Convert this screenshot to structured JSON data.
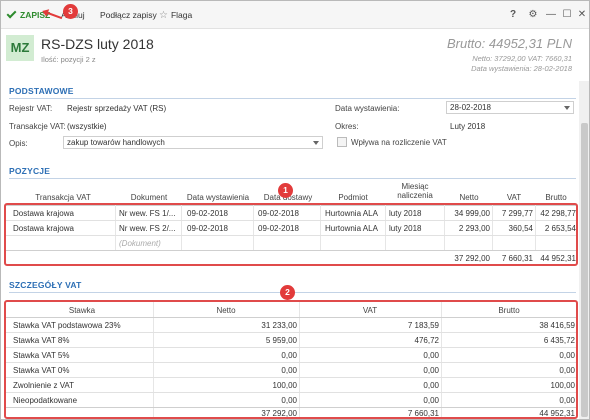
{
  "toolbar": {
    "save": "ZAPISZ",
    "cancel": "Anuluj",
    "attach": "Podłącz zapisy",
    "flag": "Flaga",
    "help": "?",
    "settings": "⚙",
    "minimize": "—",
    "maximize": "☐",
    "close": "✕"
  },
  "callouts": {
    "c1": "1",
    "c2": "2",
    "c3": "3"
  },
  "header": {
    "badge": "MZ",
    "title": "RS-DZS luty 2018",
    "subtitle": "Ilość: pozycji 2 z",
    "brutto": "Brutto: 44952,31 PLN",
    "netto_vat": "Netto: 37292,00 VAT: 7660,31",
    "issue_date": "Data wystawienia: 28-02-2018"
  },
  "podstawowe": {
    "title": "PODSTAWOWE",
    "register_label": "Rejestr VAT:",
    "register_value": "Rejestr sprzedaży VAT (RS)",
    "transaction_label": "Transakcje VAT:",
    "transaction_value": "(wszystkie)",
    "description_label": "Opis:",
    "description_value": "zakup towarów handlowych",
    "issue_date_label": "Data wystawienia:",
    "issue_date_value": "28-02-2018",
    "period_label": "Okres:",
    "period_value": "Luty 2018",
    "settlement_label": "Wpływa na rozliczenie VAT"
  },
  "pozycje": {
    "title": "POZYCJE",
    "columns": [
      "Transakcja VAT",
      "Dokument",
      "Data wystawienia",
      "Data dostawy",
      "Podmiot",
      "Miesiąc naliczenia",
      "Netto",
      "VAT",
      "Brutto"
    ],
    "rows": [
      [
        "Dostawa krajowa",
        "Nr wew. FS 1/...",
        "09-02-2018",
        "09-02-2018",
        "Hurtownia ALA",
        "luty 2018",
        "34 999,00",
        "7 299,77",
        "42 298,77"
      ],
      [
        "Dostawa krajowa",
        "Nr wew. FS 2/...",
        "09-02-2018",
        "09-02-2018",
        "Hurtownia ALA",
        "luty 2018",
        "2 293,00",
        "360,54",
        "2 653,54"
      ]
    ],
    "new_row_placeholder": "(Dokument)",
    "totals": [
      "37 292,00",
      "7 660,31",
      "44 952,31"
    ]
  },
  "szczegoly": {
    "title": "SZCZEGÓŁY VAT",
    "columns": [
      "Stawka",
      "Netto",
      "VAT",
      "Brutto"
    ],
    "rows": [
      [
        "Stawka VAT podstawowa 23%",
        "31 233,00",
        "7 183,59",
        "38 416,59"
      ],
      [
        "Stawka VAT 8%",
        "5 959,00",
        "476,72",
        "6 435,72"
      ],
      [
        "Stawka VAT 5%",
        "0,00",
        "0,00",
        "0,00"
      ],
      [
        "Stawka VAT 0%",
        "0,00",
        "0,00",
        "0,00"
      ],
      [
        "Zwolnienie z VAT",
        "100,00",
        "0,00",
        "100,00"
      ],
      [
        "Nieopodatkowane",
        "0,00",
        "0,00",
        "0,00"
      ]
    ],
    "totals": [
      "37 292,00",
      "7 660,31",
      "44 952,31"
    ]
  }
}
